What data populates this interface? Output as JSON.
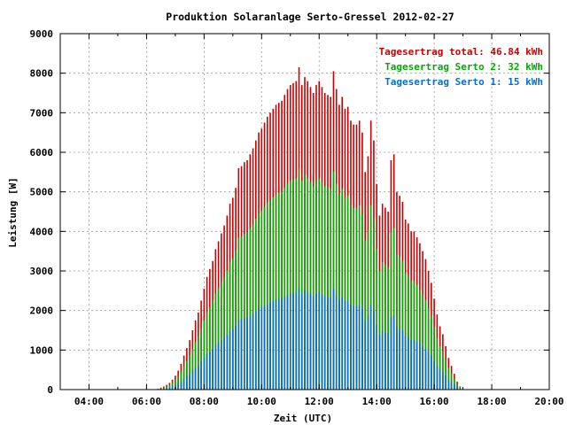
{
  "chart_data": {
    "type": "bar",
    "title": "Produktion Solaranlage Serto-Gressel 2012-02-27",
    "xlabel": "Zeit (UTC)",
    "ylabel": "Leistung [W]",
    "x_unit": "hours (UTC)",
    "xlim": [
      3.0,
      20.0
    ],
    "ylim": [
      0,
      9000
    ],
    "grid": true,
    "legend_position": "top-right",
    "x_ticks": [
      {
        "value": 4,
        "label": "04:00"
      },
      {
        "value": 6,
        "label": "06:00"
      },
      {
        "value": 8,
        "label": "08:00"
      },
      {
        "value": 10,
        "label": "10:00"
      },
      {
        "value": 12,
        "label": "12:00"
      },
      {
        "value": 14,
        "label": "14:00"
      },
      {
        "value": 16,
        "label": "16:00"
      },
      {
        "value": 18,
        "label": "18:00"
      },
      {
        "value": 20,
        "label": "20:00"
      }
    ],
    "y_ticks": [
      {
        "value": 0,
        "label": "0"
      },
      {
        "value": 1000,
        "label": "1000"
      },
      {
        "value": 2000,
        "label": "2000"
      },
      {
        "value": 3000,
        "label": "3000"
      },
      {
        "value": 4000,
        "label": "4000"
      },
      {
        "value": 5000,
        "label": "5000"
      },
      {
        "value": 6000,
        "label": "6000"
      },
      {
        "value": 7000,
        "label": "7000"
      },
      {
        "value": 8000,
        "label": "8000"
      },
      {
        "value": 9000,
        "label": "9000"
      }
    ],
    "legend": [
      {
        "label": "Tagesertrag total: 46.84 kWh",
        "color": "#cc0000"
      },
      {
        "label": "Tagesertrag Serto 2: 32 kWh",
        "color": "#00aa00"
      },
      {
        "label": "Tagesertrag Serto 1: 15 kWh",
        "color": "#0070cc"
      }
    ],
    "x": [
      6.4,
      6.5,
      6.6,
      6.7,
      6.8,
      6.9,
      7.0,
      7.1,
      7.2,
      7.3,
      7.4,
      7.5,
      7.6,
      7.7,
      7.8,
      7.9,
      8.0,
      8.1,
      8.2,
      8.3,
      8.4,
      8.5,
      8.6,
      8.7,
      8.8,
      8.9,
      9.0,
      9.1,
      9.2,
      9.3,
      9.4,
      9.5,
      9.6,
      9.7,
      9.8,
      9.9,
      10.0,
      10.1,
      10.2,
      10.3,
      10.4,
      10.5,
      10.6,
      10.7,
      10.8,
      10.9,
      11.0,
      11.1,
      11.2,
      11.3,
      11.4,
      11.5,
      11.6,
      11.7,
      11.8,
      11.9,
      12.0,
      12.1,
      12.2,
      12.3,
      12.4,
      12.5,
      12.6,
      12.7,
      12.8,
      12.9,
      13.0,
      13.1,
      13.2,
      13.3,
      13.4,
      13.5,
      13.6,
      13.7,
      13.8,
      13.9,
      14.0,
      14.1,
      14.2,
      14.3,
      14.4,
      14.5,
      14.6,
      14.7,
      14.8,
      14.9,
      15.0,
      15.1,
      15.2,
      15.3,
      15.4,
      15.5,
      15.6,
      15.7,
      15.8,
      15.9,
      16.0,
      16.1,
      16.2,
      16.3,
      16.4,
      16.5,
      16.6,
      16.7,
      16.8,
      16.9
    ],
    "series": [
      {
        "name": "Tagesertrag total: 46.84 kWh",
        "color": "#cc0000",
        "values": [
          20,
          50,
          80,
          120,
          170,
          250,
          350,
          480,
          650,
          860,
          1050,
          1250,
          1500,
          1750,
          1950,
          2250,
          2550,
          2850,
          3050,
          3250,
          3550,
          3750,
          3950,
          4150,
          4400,
          4700,
          4850,
          5100,
          5600,
          5650,
          5750,
          5800,
          5950,
          6100,
          6300,
          6500,
          6600,
          6750,
          6900,
          7000,
          7100,
          7200,
          7250,
          7300,
          7450,
          7600,
          7700,
          7750,
          7800,
          8150,
          7700,
          7900,
          7800,
          7650,
          7500,
          7700,
          7800,
          7650,
          7500,
          7450,
          7400,
          8050,
          7600,
          7200,
          7400,
          7100,
          7150,
          6800,
          6700,
          6700,
          6800,
          6500,
          5500,
          5900,
          6800,
          6300,
          5200,
          4400,
          4700,
          4600,
          4500,
          5800,
          5950,
          5000,
          4900,
          4750,
          4300,
          4200,
          4000,
          4000,
          3850,
          3700,
          3500,
          3300,
          3000,
          2700,
          2300,
          1900,
          1600,
          1400,
          1100,
          800,
          600,
          400,
          200,
          80
        ]
      },
      {
        "name": "Tagesertrag Serto 2: 32 kWh",
        "color": "#00aa00",
        "values": [
          15,
          30,
          55,
          80,
          120,
          170,
          240,
          330,
          450,
          590,
          720,
          860,
          1030,
          1200,
          1340,
          1540,
          1750,
          1950,
          2090,
          2230,
          2430,
          2570,
          2710,
          2840,
          3010,
          3220,
          3320,
          3500,
          3840,
          3870,
          3940,
          3970,
          4080,
          4180,
          4320,
          4450,
          4520,
          4620,
          4730,
          4800,
          4860,
          4930,
          4970,
          5000,
          5100,
          5210,
          5280,
          5310,
          5340,
          5580,
          5280,
          5410,
          5340,
          5240,
          5140,
          5280,
          5340,
          5240,
          5140,
          5100,
          5070,
          5510,
          5210,
          4930,
          5070,
          4860,
          4900,
          4660,
          4590,
          4590,
          4660,
          4450,
          3770,
          4040,
          4660,
          4320,
          3560,
          3010,
          3220,
          3150,
          3080,
          3970,
          4080,
          3420,
          3360,
          3250,
          2950,
          2880,
          2740,
          2740,
          2640,
          2530,
          2400,
          2260,
          2050,
          1850,
          1580,
          1300,
          1100,
          960,
          750,
          550,
          410,
          270,
          140,
          55
        ]
      },
      {
        "name": "Tagesertrag Serto 1: 15 kWh",
        "color": "#0070cc",
        "values": [
          5,
          20,
          25,
          40,
          50,
          80,
          110,
          150,
          200,
          270,
          330,
          390,
          470,
          550,
          610,
          710,
          800,
          900,
          960,
          1020,
          1120,
          1180,
          1240,
          1310,
          1390,
          1480,
          1530,
          1600,
          1760,
          1780,
          1810,
          1830,
          1870,
          1920,
          1980,
          2050,
          2080,
          2130,
          2170,
          2200,
          2240,
          2270,
          2280,
          2300,
          2350,
          2390,
          2420,
          2440,
          2460,
          2570,
          2420,
          2490,
          2460,
          2410,
          2360,
          2420,
          2460,
          2410,
          2360,
          2350,
          2330,
          2540,
          2390,
          2270,
          2330,
          2240,
          2250,
          2140,
          2110,
          2110,
          2140,
          2050,
          1730,
          1860,
          2140,
          1980,
          1640,
          1390,
          1480,
          1450,
          1420,
          1830,
          1870,
          1580,
          1540,
          1500,
          1350,
          1320,
          1260,
          1260,
          1210,
          1170,
          1100,
          1040,
          950,
          850,
          720,
          600,
          500,
          440,
          350,
          250,
          190,
          130,
          60,
          25
        ]
      }
    ]
  }
}
